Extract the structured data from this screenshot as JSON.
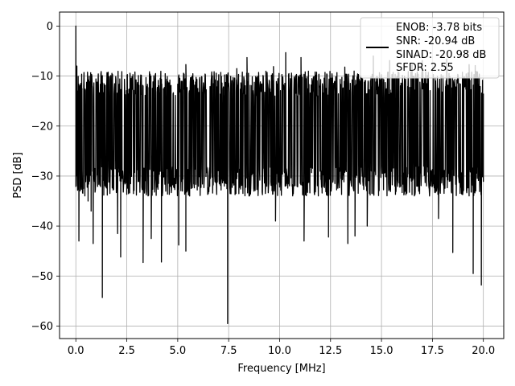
{
  "chart_data": {
    "type": "line",
    "title": "",
    "xlabel": "Frequency [MHz]",
    "ylabel": "PSD [dB]",
    "xlim": [
      -0.8,
      21.0
    ],
    "ylim": [
      -62.5,
      2.8
    ],
    "x_ticks": [
      0.0,
      2.5,
      5.0,
      7.5,
      10.0,
      12.5,
      15.0,
      17.5,
      20.0
    ],
    "x_tick_labels": [
      "0.0",
      "2.5",
      "5.0",
      "7.5",
      "10.0",
      "12.5",
      "15.0",
      "17.5",
      "20.0"
    ],
    "y_ticks": [
      0,
      -10,
      -20,
      -30,
      -40,
      -50,
      -60
    ],
    "y_tick_labels": [
      "0",
      "−10",
      "−20",
      "−30",
      "−40",
      "−50",
      "−60"
    ],
    "grid": true,
    "legend_position": "top-right",
    "line_color": "#000000",
    "series": [
      {
        "legend_lines": [
          "ENOB: -3.78 bits",
          "SNR: -20.94 dB",
          "SINAD: -20.98 dB",
          "SFDR: 2.55"
        ],
        "noise_band": {
          "x_start": 0.0,
          "x_end": 20.0,
          "upper_db": -12,
          "lower_db": -31,
          "typical_db": -20
        },
        "peak_points": [
          [
            0.0,
            0.0
          ],
          [
            0.02,
            -11.5
          ],
          [
            0.05,
            -8.0
          ],
          [
            0.08,
            -13.0
          ],
          [
            0.12,
            -21.8
          ],
          [
            0.15,
            -43.0
          ],
          [
            0.3,
            -12.5
          ],
          [
            0.6,
            -35.0
          ],
          [
            0.75,
            -37.0
          ],
          [
            0.85,
            -43.5
          ],
          [
            1.05,
            -11.2
          ],
          [
            1.3,
            -54.3
          ],
          [
            2.05,
            -41.5
          ],
          [
            2.2,
            -46.2
          ],
          [
            2.8,
            -9.7
          ],
          [
            3.3,
            -47.3
          ],
          [
            3.7,
            -42.5
          ],
          [
            4.2,
            -47.2
          ],
          [
            5.05,
            -43.8
          ],
          [
            5.4,
            -45.0
          ],
          [
            5.4,
            -7.7
          ],
          [
            7.45,
            -59.5
          ],
          [
            7.9,
            -8.5
          ],
          [
            8.4,
            -6.3
          ],
          [
            9.7,
            -8.1
          ],
          [
            9.8,
            -39.0
          ],
          [
            10.3,
            -5.3
          ],
          [
            11.05,
            -6.3
          ],
          [
            11.2,
            -43.0
          ],
          [
            12.4,
            -42.2
          ],
          [
            13.2,
            -8.2
          ],
          [
            13.35,
            -43.5
          ],
          [
            13.7,
            -42.0
          ],
          [
            14.3,
            -40.0
          ],
          [
            14.6,
            -6.0
          ],
          [
            15.4,
            -6.9
          ],
          [
            16.5,
            -7.8
          ],
          [
            17.0,
            -6.9
          ],
          [
            17.8,
            -38.5
          ],
          [
            18.2,
            -6.6
          ],
          [
            18.5,
            -45.3
          ],
          [
            19.3,
            -7.7
          ],
          [
            19.5,
            -49.5
          ],
          [
            19.6,
            -7.9
          ],
          [
            19.9,
            -51.8
          ],
          [
            20.0,
            -13.5
          ]
        ]
      }
    ]
  }
}
